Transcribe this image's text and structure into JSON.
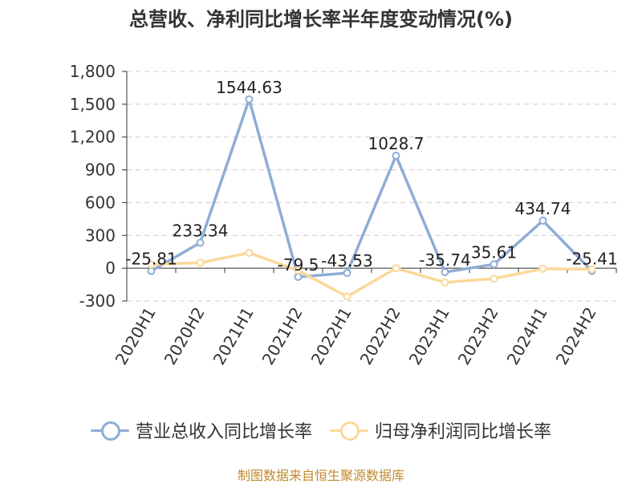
{
  "chart_data": {
    "type": "line",
    "title": "总营收、净利同比增长率半年度变动情况(%)",
    "categories": [
      "2020H1",
      "2020H2",
      "2021H1",
      "2021H2",
      "2022H1",
      "2022H2",
      "2023H1",
      "2023H2",
      "2024H1",
      "2024H2"
    ],
    "y_ticks": [
      "1,800",
      "1,500",
      "1,200",
      "900",
      "600",
      "300",
      "0",
      "-300"
    ],
    "ylim": [
      -300,
      1800
    ],
    "grid": true,
    "legend_position": "bottom",
    "series": [
      {
        "name": "营业总收入同比增长率",
        "color": "#8eadd6",
        "values": [
          -25.81,
          233.34,
          1544.63,
          -79.5,
          -43.53,
          1028.7,
          -35.74,
          35.61,
          434.74,
          -25.41
        ],
        "labels": [
          "-25.81",
          "233.34",
          "1544.63",
          "-79.5",
          "-43.53",
          "1028.7",
          "-35.74",
          "35.61",
          "434.74",
          "-25.41"
        ]
      },
      {
        "name": "归母净利润同比增长率",
        "color": "#fbd89a",
        "values": [
          35,
          50,
          140,
          -20,
          -260,
          0,
          -130,
          -95,
          -5,
          -10
        ]
      }
    ],
    "source": "制图数据来自恒生聚源数据库"
  }
}
